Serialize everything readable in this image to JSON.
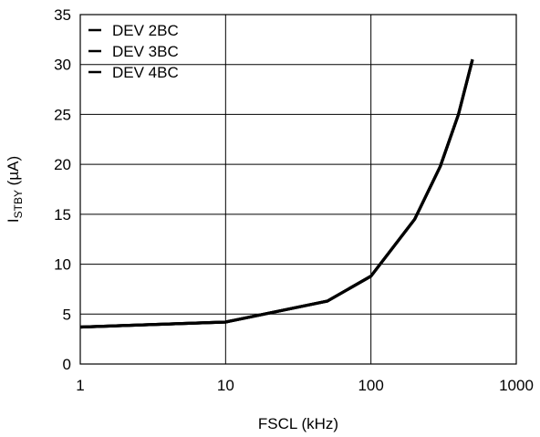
{
  "chart_data": {
    "type": "line",
    "xscale": "log",
    "xlim": [
      1,
      1000
    ],
    "ylim": [
      0,
      35
    ],
    "grid": true,
    "legend_position": "top-left",
    "xlabel": "FSCL (kHz)",
    "ylabel_main": "I",
    "ylabel_sub": "STBY",
    "ylabel_unit": " (µA)",
    "x_ticks": [
      1,
      10,
      100,
      1000
    ],
    "x_tick_labels": [
      "1",
      "10",
      "100",
      "1000"
    ],
    "y_ticks": [
      0,
      5,
      10,
      15,
      20,
      25,
      30,
      35
    ],
    "y_tick_labels": [
      "0",
      "5",
      "10",
      "15",
      "20",
      "25",
      "30",
      "35"
    ],
    "series": [
      {
        "name": "DEV 2BC",
        "x": [
          1,
          10,
          50,
          100,
          200,
          300,
          400,
          500
        ],
        "y": [
          3.7,
          4.2,
          6.3,
          8.8,
          14.5,
          19.8,
          25.0,
          30.5
        ]
      },
      {
        "name": "DEV 3BC",
        "x": [
          1,
          10,
          50,
          100,
          200,
          300,
          400,
          500
        ],
        "y": [
          3.7,
          4.2,
          6.3,
          8.8,
          14.5,
          19.8,
          25.0,
          30.5
        ]
      },
      {
        "name": "DEV 4BC",
        "x": [
          1,
          10,
          50,
          100,
          200,
          300,
          400,
          500
        ],
        "y": [
          3.7,
          4.2,
          6.3,
          8.8,
          14.5,
          19.8,
          25.0,
          30.5
        ]
      }
    ],
    "line_color": "#000000"
  }
}
